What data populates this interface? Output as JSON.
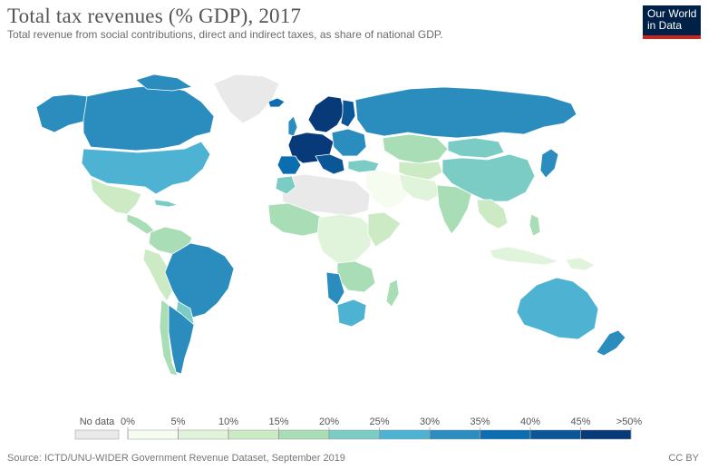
{
  "header": {
    "title": "Total tax revenues (% GDP), 2017",
    "subtitle": "Total revenue from social contributions, direct and indirect taxes, as share of national GDP."
  },
  "logo": {
    "line1": "Our World",
    "line2": "in Data"
  },
  "map": {
    "variable": "Total tax revenues (% GDP)",
    "year": 2017,
    "regions": [
      {
        "name": "Canada",
        "value_range": "30-35%"
      },
      {
        "name": "United States",
        "value_range": "25-30%"
      },
      {
        "name": "Greenland",
        "value_range": "No data"
      },
      {
        "name": "Mexico",
        "value_range": "15-20%"
      },
      {
        "name": "Brazil",
        "value_range": "30-35%"
      },
      {
        "name": "Argentina",
        "value_range": "30-35%"
      },
      {
        "name": "Western South America",
        "value_range": "15-25%"
      },
      {
        "name": "Western Europe",
        "value_range": ">40%"
      },
      {
        "name": "Scandinavia",
        "value_range": "40-50%"
      },
      {
        "name": "Russia",
        "value_range": "30-35%"
      },
      {
        "name": "Central Asia",
        "value_range": "20-25%"
      },
      {
        "name": "China",
        "value_range": "20-25%"
      },
      {
        "name": "India",
        "value_range": "15-20%"
      },
      {
        "name": "Middle East",
        "value_range": "0-10%"
      },
      {
        "name": "Japan",
        "value_range": "30-35%"
      },
      {
        "name": "Southeast Asia",
        "value_range": "10-20%"
      },
      {
        "name": "Australia",
        "value_range": "25-30%"
      },
      {
        "name": "New Zealand",
        "value_range": "30-35%"
      },
      {
        "name": "North Africa",
        "value_range": "No data"
      },
      {
        "name": "Sub-Saharan Africa",
        "value_range": "5-20%"
      },
      {
        "name": "Southern Africa",
        "value_range": "25-30%"
      },
      {
        "name": "Antarctica / no-data islands",
        "value_range": "No data"
      }
    ]
  },
  "legend": {
    "no_data_label": "No data",
    "no_data_color": "#e9e9e9",
    "tick_labels": [
      "0%",
      "5%",
      "10%",
      "15%",
      "20%",
      "25%",
      "30%",
      "35%",
      "40%",
      "45%",
      ">50%"
    ],
    "colors": [
      "#f7fcf0",
      "#e0f3db",
      "#ccebc5",
      "#a8ddb5",
      "#7bccc4",
      "#4eb3d3",
      "#2b8cbe",
      "#0c6eb1",
      "#0b5697",
      "#083a7a"
    ]
  },
  "footer": {
    "source": "Source: ICTD/UNU-WIDER Government Revenue Dataset, September 2019",
    "license": "CC BY"
  }
}
